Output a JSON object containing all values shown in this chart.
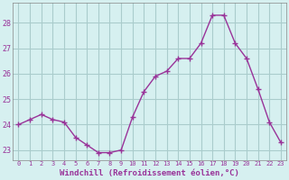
{
  "x": [
    0,
    1,
    2,
    3,
    4,
    5,
    6,
    7,
    8,
    9,
    10,
    11,
    12,
    13,
    14,
    15,
    16,
    17,
    18,
    19,
    20,
    21,
    22,
    23
  ],
  "y": [
    24.0,
    24.2,
    24.4,
    24.2,
    24.1,
    23.5,
    23.2,
    22.9,
    22.9,
    23.0,
    24.3,
    25.3,
    25.9,
    26.1,
    26.6,
    26.6,
    27.2,
    28.3,
    28.3,
    27.2,
    26.6,
    25.4,
    24.1,
    23.3
  ],
  "line_color": "#993399",
  "marker": "+",
  "marker_size": 5,
  "bg_color": "#d6f0f0",
  "plot_bg_color": "#d6f0f0",
  "grid_color": "#aacccc",
  "xlabel": "Windchill (Refroidissement éolien,°C)",
  "xlabel_color": "#993399",
  "tick_color": "#993399",
  "spine_color": "#888888",
  "ylabel_ticks": [
    23,
    24,
    25,
    26,
    27,
    28
  ],
  "xlim": [
    -0.5,
    23.5
  ],
  "ylim": [
    22.6,
    28.8
  ],
  "title": ""
}
